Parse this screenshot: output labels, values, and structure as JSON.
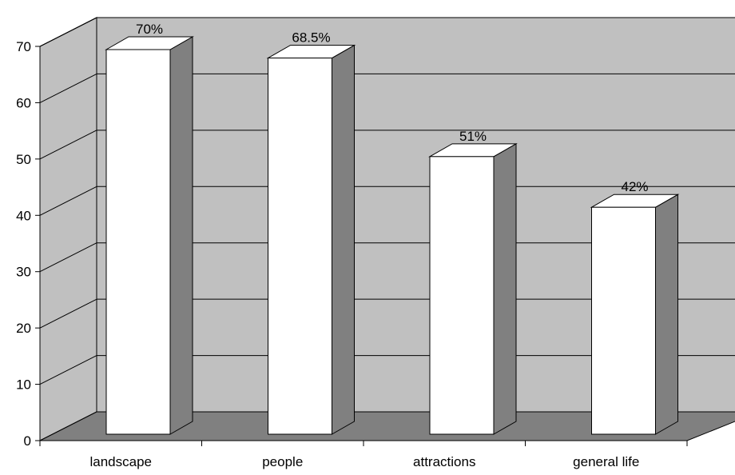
{
  "chart_data": {
    "type": "bar",
    "categories": [
      "landscape",
      "people",
      "attractions",
      "general life"
    ],
    "values": [
      70,
      68.5,
      51,
      42
    ],
    "data_labels": [
      "70%",
      "68.5%",
      "51%",
      "42%"
    ],
    "title": "",
    "xlabel": "",
    "ylabel": "",
    "ylim": [
      0,
      70
    ],
    "yticks": [
      0,
      10,
      20,
      30,
      40,
      50,
      60,
      70
    ],
    "grid": true,
    "legend": "none",
    "three_d": true,
    "colors": {
      "wall": "#c0c0c0",
      "floor": "#808080",
      "bar_front": "#ffffff",
      "bar_side": "#808080",
      "bar_top": "#ffffff",
      "outline": "#000000",
      "gridline": "#000000"
    }
  }
}
